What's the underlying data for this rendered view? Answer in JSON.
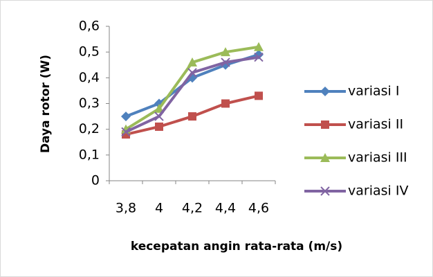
{
  "chart_data": {
    "type": "line",
    "x_label": "kecepatan angin rata-rata (m/s)",
    "y_label": "Daya rotor (W)",
    "categories": [
      "3,8",
      "4",
      "4,2",
      "4,4",
      "4,6"
    ],
    "series": [
      {
        "name": "variasi I",
        "color": "#4f81bd",
        "marker": "diamond",
        "values": [
          0.25,
          0.3,
          0.4,
          0.45,
          0.49
        ]
      },
      {
        "name": "variasi II",
        "color": "#c0504d",
        "marker": "square",
        "values": [
          0.18,
          0.21,
          0.25,
          0.3,
          0.33
        ]
      },
      {
        "name": "variasi III",
        "color": "#9bbb59",
        "marker": "triangle",
        "values": [
          0.2,
          0.28,
          0.46,
          0.5,
          0.52
        ]
      },
      {
        "name": "variasi IV",
        "color": "#8064a2",
        "marker": "x",
        "values": [
          0.19,
          0.25,
          0.42,
          0.46,
          0.48
        ]
      }
    ],
    "ylim": [
      0,
      0.6
    ],
    "yticks": [
      {
        "value": 0,
        "label": "0"
      },
      {
        "value": 0.1,
        "label": "0,1"
      },
      {
        "value": 0.2,
        "label": "0,2"
      },
      {
        "value": 0.3,
        "label": "0,3"
      },
      {
        "value": 0.4,
        "label": "0,4"
      },
      {
        "value": 0.5,
        "label": "0,5"
      },
      {
        "value": 0.6,
        "label": "0,6"
      }
    ],
    "legend": "right"
  }
}
